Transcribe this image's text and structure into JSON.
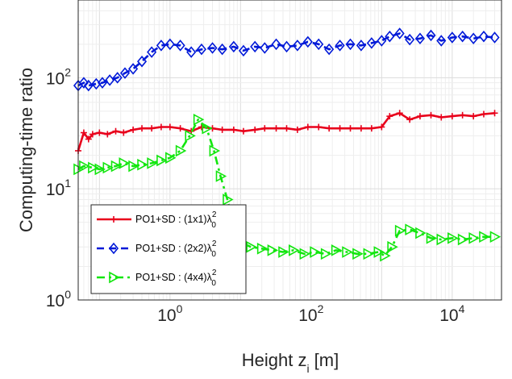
{
  "chart_data": {
    "type": "line",
    "xscale": "log",
    "yscale": "log",
    "xlim": [
      0.05,
      50000
    ],
    "ylim": [
      1,
      500
    ],
    "xlabel": "Height z",
    "xlabel_sub": "i",
    "xlabel_unit": "[m]",
    "ylabel": "Computing-time ratio",
    "grid": true,
    "legend_position": "bottom-left",
    "xticks": [
      {
        "base": "10",
        "exp": "0",
        "value": 1
      },
      {
        "base": "10",
        "exp": "2",
        "value": 100
      },
      {
        "base": "10",
        "exp": "4",
        "value": 10000
      }
    ],
    "yticks": [
      {
        "base": "10",
        "exp": "0",
        "value": 1
      },
      {
        "base": "10",
        "exp": "1",
        "value": 10
      },
      {
        "base": "10",
        "exp": "2",
        "value": 100
      }
    ],
    "series": [
      {
        "name": "PO1+SD : (1x1)λ",
        "name_sub": "0",
        "name_sup": "2",
        "color": "#e8001b",
        "dash": "solid",
        "marker": "plus",
        "x": [
          0.05,
          0.06,
          0.07,
          0.08,
          0.1,
          0.13,
          0.17,
          0.22,
          0.3,
          0.4,
          0.55,
          0.75,
          1.0,
          1.4,
          2.0,
          2.8,
          4,
          5.5,
          8,
          11,
          16,
          22,
          32,
          45,
          64,
          90,
          128,
          180,
          256,
          360,
          512,
          720,
          1000,
          1300,
          1800,
          2500,
          3500,
          5000,
          7000,
          10000,
          14000,
          20000,
          28000,
          40000
        ],
        "values": [
          22,
          32,
          28,
          31,
          32,
          31,
          33,
          32,
          34,
          35,
          35,
          36,
          36,
          35,
          33,
          36,
          35,
          34,
          34,
          33,
          34,
          35,
          35,
          35,
          34,
          36,
          36,
          35,
          35,
          35,
          35,
          35,
          36,
          45,
          48,
          42,
          45,
          46,
          44,
          45,
          46,
          45,
          47,
          48
        ]
      },
      {
        "name": "PO1+SD : (2x2)λ",
        "name_sub": "0",
        "name_sup": "2",
        "color": "#0019d8",
        "dash": "dashed",
        "marker": "diamond",
        "x": [
          0.05,
          0.06,
          0.07,
          0.09,
          0.11,
          0.14,
          0.18,
          0.23,
          0.3,
          0.4,
          0.55,
          0.75,
          1.0,
          1.4,
          2.0,
          2.8,
          4,
          5.5,
          8,
          11,
          16,
          22,
          32,
          45,
          64,
          90,
          128,
          180,
          256,
          360,
          512,
          720,
          1000,
          1300,
          1800,
          2500,
          3500,
          5000,
          7000,
          10000,
          14000,
          20000,
          28000,
          40000
        ],
        "values": [
          85,
          90,
          85,
          88,
          90,
          95,
          100,
          110,
          120,
          140,
          170,
          195,
          200,
          195,
          170,
          180,
          185,
          180,
          190,
          175,
          190,
          185,
          200,
          190,
          195,
          210,
          200,
          180,
          195,
          200,
          195,
          205,
          215,
          235,
          250,
          220,
          225,
          240,
          215,
          230,
          235,
          225,
          235,
          230
        ]
      },
      {
        "name": "PO1+SD : (4x4)λ",
        "name_sub": "0",
        "name_sup": "2",
        "color": "#12e60e",
        "dash": "dashdot",
        "marker": "triangle-right",
        "x": [
          0.05,
          0.06,
          0.08,
          0.1,
          0.13,
          0.17,
          0.22,
          0.3,
          0.4,
          0.55,
          0.75,
          1.0,
          1.4,
          1.9,
          2.5,
          3.3,
          4.2,
          5.2,
          6.5,
          8,
          10,
          14,
          20,
          28,
          40,
          56,
          80,
          112,
          160,
          225,
          320,
          450,
          640,
          900,
          1100,
          1400,
          1800,
          2500,
          3500,
          5000,
          7000,
          10000,
          14000,
          20000,
          28000,
          40000
        ],
        "values": [
          15,
          16,
          15.5,
          15,
          15.5,
          16,
          17,
          16,
          16.5,
          17,
          18,
          19,
          22,
          30,
          42,
          35,
          22,
          13,
          8,
          4.5,
          3.3,
          3.0,
          2.9,
          2.8,
          2.7,
          2.8,
          2.6,
          2.7,
          2.6,
          2.8,
          2.7,
          2.6,
          2.6,
          2.7,
          2.5,
          3.0,
          4.2,
          4.3,
          4.0,
          3.6,
          3.5,
          3.6,
          3.5,
          3.6,
          3.7,
          3.7
        ]
      }
    ]
  }
}
